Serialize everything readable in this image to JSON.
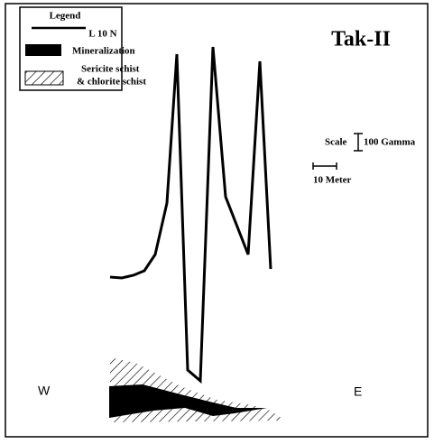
{
  "title": "Tak-II",
  "legend": {
    "title": "Legend",
    "line": "L 10 N",
    "mineralization": "Mineralization",
    "schist_1": "Sericite schist",
    "schist_2": "& chlorite schist"
  },
  "scale": {
    "label": "Scale",
    "vertical": "100 Gamma",
    "horizontal": "10 Meter"
  },
  "directions": {
    "west": "W",
    "east": "E"
  }
}
